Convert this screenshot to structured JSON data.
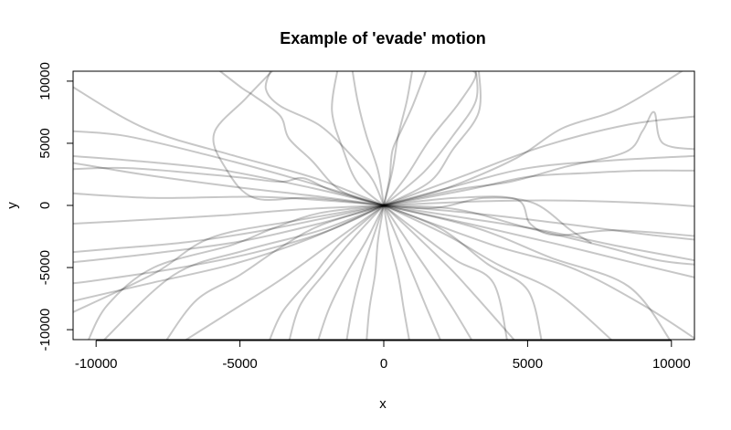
{
  "chart_data": {
    "type": "line",
    "title": "Example of 'evade' motion",
    "xlabel": "x",
    "ylabel": "y",
    "xlim": [
      -10800,
      10800
    ],
    "ylim": [
      -10800,
      10800
    ],
    "xticks": [
      -10000,
      -5000,
      0,
      5000,
      10000
    ],
    "yticks": [
      -10000,
      -5000,
      0,
      5000,
      10000
    ],
    "line_color": "#000000",
    "line_opacity": 0.22,
    "grid": false,
    "legend": "none",
    "series": [
      {
        "x": [
          0,
          -2200,
          -5200,
          -8400,
          -11000
        ],
        "y": [
          0,
          700,
          1500,
          2500,
          3500
        ]
      },
      {
        "x": [
          0,
          -2500,
          -5500,
          -8200,
          -11000
        ],
        "y": [
          0,
          1400,
          2800,
          3500,
          4000
        ]
      },
      {
        "x": [
          0,
          -3000,
          -6200,
          -9000,
          -11000
        ],
        "y": [
          0,
          2100,
          4100,
          5600,
          6000
        ]
      },
      {
        "x": [
          0,
          -2400,
          -5200,
          -8300,
          -11000
        ],
        "y": [
          0,
          2200,
          4000,
          6200,
          9800
        ]
      },
      {
        "x": [
          0,
          -1800,
          -2800,
          -3600,
          -5200,
          -8800,
          -11000
        ],
        "y": [
          0,
          1200,
          2200,
          1900,
          2300,
          3000,
          2900
        ]
      },
      {
        "x": [
          0,
          -2000,
          -4500,
          -8000,
          -11000
        ],
        "y": [
          0,
          400,
          700,
          600,
          1000
        ]
      },
      {
        "x": [
          0,
          -2800,
          -5600,
          -8600,
          -11000
        ],
        "y": [
          0,
          -300,
          -800,
          -1200,
          -1500
        ]
      },
      {
        "x": [
          0,
          -2000,
          -4400,
          -7000,
          -9500,
          -11000
        ],
        "y": [
          0,
          -1000,
          -2100,
          -3000,
          -3500,
          -3800
        ]
      },
      {
        "x": [
          0,
          -2300,
          -5000,
          -7800,
          -10500,
          -11000
        ],
        "y": [
          0,
          -1500,
          -2900,
          -3800,
          -4500,
          -4600
        ]
      },
      {
        "x": [
          0,
          -2000,
          -4500,
          -7300,
          -10200,
          -11000
        ],
        "y": [
          0,
          -2100,
          -3800,
          -5100,
          -6100,
          -6300
        ]
      },
      {
        "x": [
          0,
          -2500,
          -5200,
          -8200,
          -11000
        ],
        "y": [
          0,
          -2600,
          -4700,
          -6300,
          -7800
        ]
      },
      {
        "x": [
          0,
          -1800,
          -3600,
          -5500,
          -7000
        ],
        "y": [
          0,
          -3000,
          -6000,
          -8800,
          -11000
        ]
      },
      {
        "x": [
          0,
          -2200,
          -4800,
          -7300,
          -9800
        ],
        "y": [
          0,
          -2000,
          -3600,
          -5600,
          -11000
        ]
      },
      {
        "x": [
          0,
          -1500,
          -2500,
          -3500,
          -4000
        ],
        "y": [
          0,
          -3000,
          -5800,
          -8500,
          -11000
        ]
      },
      {
        "x": [
          0,
          -3000,
          -6000,
          -8000,
          -11000
        ],
        "y": [
          0,
          -1200,
          -2600,
          -5500,
          -8800
        ]
      },
      {
        "x": [
          0,
          -2200,
          -3600,
          -5000,
          -6500,
          -7600
        ],
        "y": [
          0,
          -1600,
          -3400,
          -5600,
          -7600,
          -11000
        ]
      },
      {
        "x": [
          0,
          -1000,
          -2000,
          -2900,
          -3300
        ],
        "y": [
          0,
          -2500,
          -5300,
          -8000,
          -11000
        ]
      },
      {
        "x": [
          0,
          -600,
          -1300,
          -1900,
          -2300
        ],
        "y": [
          0,
          -2800,
          -5500,
          -8300,
          -11000
        ]
      },
      {
        "x": [
          0,
          -400,
          -800,
          -1100,
          -1300
        ],
        "y": [
          0,
          -2800,
          -5500,
          -8300,
          -11000
        ]
      },
      {
        "x": [
          0,
          -200,
          -300,
          -500,
          -600
        ],
        "y": [
          0,
          -2800,
          -5500,
          -8300,
          -11000
        ]
      },
      {
        "x": [
          0,
          200,
          500,
          700,
          900
        ],
        "y": [
          0,
          -2800,
          -5600,
          -8400,
          -11000
        ]
      },
      {
        "x": [
          0,
          500,
          1000,
          1500,
          2000
        ],
        "y": [
          0,
          -2800,
          -5500,
          -8300,
          -11000
        ]
      },
      {
        "x": [
          0,
          800,
          1600,
          2400,
          3100
        ],
        "y": [
          0,
          -2800,
          -5500,
          -8300,
          -11000
        ]
      },
      {
        "x": [
          0,
          1200,
          2400,
          3500,
          4600
        ],
        "y": [
          0,
          -2600,
          -5300,
          -8100,
          -11000
        ]
      },
      {
        "x": [
          0,
          1000,
          2500,
          3800,
          4300
        ],
        "y": [
          0,
          -1800,
          -4400,
          -6200,
          -11000
        ]
      },
      {
        "x": [
          0,
          2000,
          3600,
          5000,
          5500
        ],
        "y": [
          0,
          -1900,
          -4700,
          -6800,
          -11000
        ]
      },
      {
        "x": [
          0,
          2200,
          4000,
          6000,
          8000
        ],
        "y": [
          0,
          -2400,
          -4800,
          -7000,
          -11000
        ]
      },
      {
        "x": [
          0,
          3200,
          5800,
          8500,
          10000
        ],
        "y": [
          0,
          -1800,
          -4200,
          -6500,
          -11000
        ]
      },
      {
        "x": [
          0,
          3000,
          6000,
          9000,
          11000
        ],
        "y": [
          0,
          -1500,
          -3100,
          -4800,
          -5900
        ]
      },
      {
        "x": [
          0,
          2800,
          5500,
          8200,
          11000
        ],
        "y": [
          0,
          -1000,
          -2000,
          -3300,
          -4500
        ]
      },
      {
        "x": [
          0,
          3000,
          6000,
          9000,
          11000
        ],
        "y": [
          0,
          -600,
          -1400,
          -2300,
          -2800
        ]
      },
      {
        "x": [
          0,
          1800,
          3500,
          5200,
          6500,
          7200
        ],
        "y": [
          0,
          -200,
          600,
          200,
          -2000,
          -3000
        ]
      },
      {
        "x": [
          0,
          2500,
          4600,
          5100,
          6000,
          8000,
          11000
        ],
        "y": [
          0,
          600,
          500,
          -1500,
          -2400,
          -2000,
          -2500
        ]
      },
      {
        "x": [
          0,
          3000,
          6000,
          9000,
          11000
        ],
        "y": [
          0,
          300,
          400,
          200,
          -100
        ]
      },
      {
        "x": [
          0,
          3000,
          5000,
          7000,
          9000,
          11000
        ],
        "y": [
          0,
          1300,
          2300,
          2600,
          2800,
          2800
        ]
      },
      {
        "x": [
          0,
          2400,
          5000,
          7800,
          11000
        ],
        "y": [
          0,
          1500,
          3000,
          3600,
          4000
        ]
      },
      {
        "x": [
          0,
          2800,
          5600,
          8500,
          11000
        ],
        "y": [
          0,
          2400,
          4800,
          6500,
          7200
        ]
      },
      {
        "x": [
          0,
          2600,
          4400,
          6300,
          8400,
          9000,
          9400,
          9700,
          11000
        ],
        "y": [
          0,
          1300,
          1900,
          3100,
          4300,
          6000,
          7500,
          5000,
          4500
        ]
      },
      {
        "x": [
          0,
          2200,
          4600,
          6200,
          8200,
          10500
        ],
        "y": [
          0,
          1400,
          3800,
          6200,
          7800,
          11000
        ]
      },
      {
        "x": [
          0,
          800,
          1600,
          2600,
          3200,
          2700
        ],
        "y": [
          0,
          2400,
          5300,
          8200,
          10500,
          11000
        ]
      },
      {
        "x": [
          0,
          1400,
          2400,
          3200,
          3200
        ],
        "y": [
          0,
          2700,
          5600,
          8400,
          11000
        ]
      },
      {
        "x": [
          0,
          300,
          500,
          800,
          1000
        ],
        "y": [
          0,
          2800,
          5600,
          8400,
          11000
        ]
      },
      {
        "x": [
          0,
          1600,
          2400,
          3300,
          3300
        ],
        "y": [
          0,
          1900,
          4500,
          7500,
          11000
        ]
      },
      {
        "x": [
          0,
          -200,
          -600,
          -900,
          -1100
        ],
        "y": [
          0,
          2800,
          5600,
          8300,
          11000
        ]
      },
      {
        "x": [
          0,
          -900,
          -1400,
          -1800,
          -1600
        ],
        "y": [
          0,
          1800,
          4400,
          7600,
          11000
        ]
      },
      {
        "x": [
          0,
          -1500,
          -2500,
          -3300,
          -3600,
          -4500,
          -4900,
          -5800
        ],
        "y": [
          0,
          1200,
          3600,
          5400,
          7200,
          8800,
          9400,
          11000
        ]
      },
      {
        "x": [
          0,
          -2500,
          -4500,
          -5500,
          -5900,
          -4800,
          -3800
        ],
        "y": [
          0,
          600,
          600,
          3000,
          5800,
          8600,
          11000
        ]
      },
      {
        "x": [
          0,
          -400,
          -1000,
          -2200,
          -3600,
          -4100,
          -3900
        ],
        "y": [
          0,
          2100,
          3700,
          6400,
          8000,
          9400,
          11000
        ]
      },
      {
        "x": [
          0,
          200,
          300,
          600,
          1000,
          1500
        ],
        "y": [
          0,
          2200,
          4400,
          6000,
          8000,
          11000
        ]
      },
      {
        "x": [
          0,
          -2200,
          -3800,
          -5300,
          -8000,
          -9600,
          -10300
        ],
        "y": [
          0,
          -600,
          -1800,
          -3200,
          -5000,
          -8000,
          -11000
        ]
      },
      {
        "x": [
          0,
          2500,
          5000,
          7500,
          9500,
          11000
        ],
        "y": [
          0,
          -300,
          -1800,
          -3200,
          -4400,
          -4800
        ]
      },
      {
        "x": [
          0,
          3800,
          6500,
          9000,
          11000
        ],
        "y": [
          0,
          -3200,
          -5000,
          -8000,
          -11000
        ]
      }
    ]
  }
}
